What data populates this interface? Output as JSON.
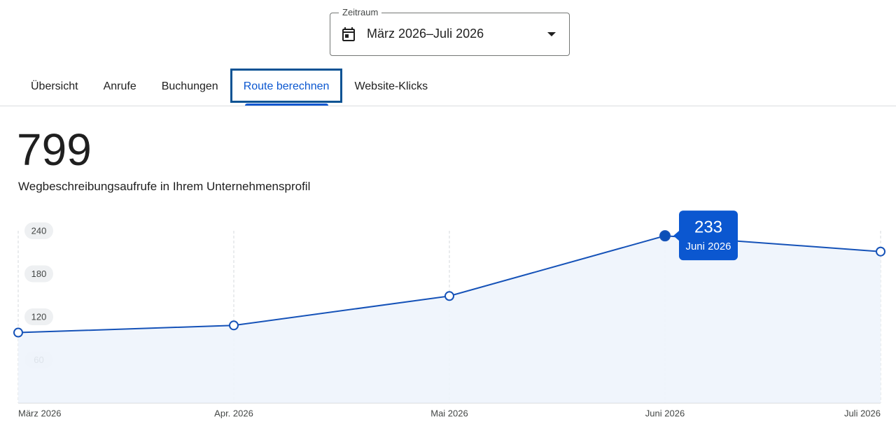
{
  "date_picker": {
    "label": "Zeitraum",
    "value": "März 2026–Juli 2026"
  },
  "tabs": {
    "items": [
      "Übersicht",
      "Anrufe",
      "Buchungen",
      "Route berechnen",
      "Website-Klicks"
    ],
    "active": 3
  },
  "summary": {
    "total": 799,
    "description": "Wegbeschreibungsaufrufe in Ihrem Unternehmensprofil"
  },
  "chart_data": {
    "type": "line",
    "categories": [
      "März 2026",
      "Apr. 2026",
      "Mai 2026",
      "Juni 2026",
      "Juli 2026"
    ],
    "values": [
      98,
      108,
      149,
      233,
      211
    ],
    "color": "#1552b8",
    "ylim": [
      0,
      240
    ],
    "yticks": [
      60,
      120,
      180,
      240
    ],
    "grid": true,
    "tooltip_index": 3
  }
}
